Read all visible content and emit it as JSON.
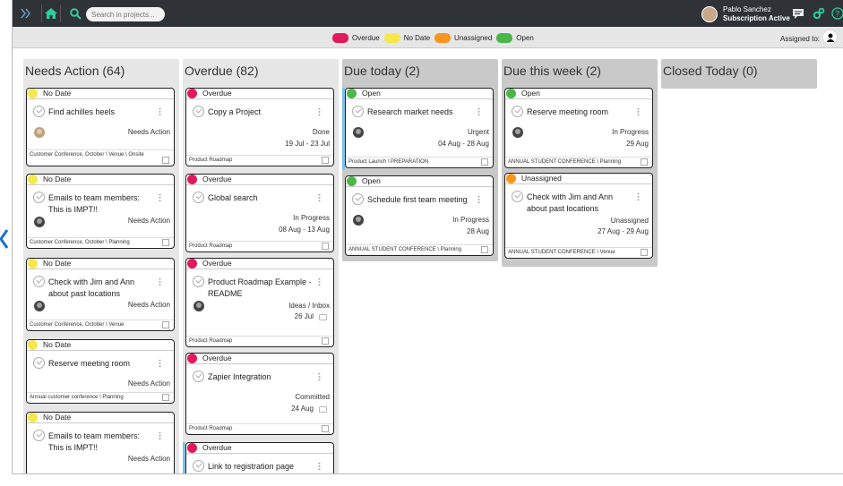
{
  "topbar": {
    "search_placeholder": "Search in projects...",
    "user_name": "Pablo Sanchez",
    "user_status": "Subscription Active",
    "icons": [
      "double-chevron-right-icon",
      "home-icon",
      "search-icon",
      "chat-icon",
      "settings-icon",
      "help-icon"
    ]
  },
  "legend": [
    {
      "label": "Overdue",
      "color": "#e2195a"
    },
    {
      "label": "No Date",
      "color": "#f5e84d"
    },
    {
      "label": "Unassigned",
      "color": "#f7961e"
    },
    {
      "label": "Open",
      "color": "#4cb64b"
    }
  ],
  "assigned_to_label": "Assigned to:",
  "columns": [
    {
      "title": "Needs Action (64)",
      "cards": [
        {
          "status": "No Date",
          "color": "#f5e84d",
          "title": "Find achilles heels",
          "state": "Needs Action",
          "dates": "",
          "project": "Customer Conference, October \\ Venue \\ Onsite"
        },
        {
          "status": "No Date",
          "color": "#f5e84d",
          "title": "Emails to team members: This is IMPT!!",
          "state": "Needs Action",
          "dates": "",
          "project": "Customer Conference, October \\ Planning"
        },
        {
          "status": "No Date",
          "color": "#f5e84d",
          "title": "Check with Jim and Ann about past locations",
          "state": "Needs Action",
          "dates": "",
          "project": "Customer Conference, October \\ Venue"
        },
        {
          "status": "No Date",
          "color": "#f5e84d",
          "title": "Reserve meeting room",
          "state": "Needs Action",
          "dates": "",
          "project": "Annual customer conference \\ Planning"
        },
        {
          "status": "No Date",
          "color": "#f5e84d",
          "title": "Emails to team members: This is IMPT!!",
          "state": "Needs Action",
          "dates": "",
          "project": ""
        }
      ]
    },
    {
      "title": "Overdue (82)",
      "cards": [
        {
          "status": "Overdue",
          "color": "#e2195a",
          "title": "Copy a Project",
          "state": "Done",
          "dates": "19 Jul - 23 Jul",
          "project": "Product Roadmap"
        },
        {
          "status": "Overdue",
          "color": "#e2195a",
          "title": "Global search",
          "state": "In Progress",
          "dates": "08 Aug - 13 Aug",
          "project": "Product Roadmap"
        },
        {
          "status": "Overdue",
          "color": "#e2195a",
          "title": "Product Roadmap Example - README",
          "state": "Ideas / Inbox",
          "dates": "26 Jul",
          "project": "Product Roadmap"
        },
        {
          "status": "Overdue",
          "color": "#e2195a",
          "title": "Zapier Integration",
          "state": "Committed",
          "dates": "24 Aug",
          "project": "Product Roadmap"
        },
        {
          "status": "Overdue",
          "color": "#e2195a",
          "title": "Link to registration page",
          "state": "",
          "dates": "",
          "project": ""
        }
      ]
    },
    {
      "title": "Due today (2)",
      "cards": [
        {
          "status": "Open",
          "color": "#4cb64b",
          "title": "Research market needs",
          "state": "Urgent",
          "dates": "04 Aug - 28 Aug",
          "project": "Product Launch \\ PREPARATION"
        },
        {
          "status": "Open",
          "color": "#4cb64b",
          "title": "Schedule first team meeting",
          "state": "In Progress",
          "dates": "28 Aug",
          "project": "ANNUAL STUDENT CONFERENCE \\ Planning"
        }
      ]
    },
    {
      "title": "Due this week (2)",
      "cards": [
        {
          "status": "Open",
          "color": "#4cb64b",
          "title": "Reserve meeting room",
          "state": "In Progress",
          "dates": "29 Aug",
          "project": "ANNUAL STUDENT CONFERENCE \\ Planning"
        },
        {
          "status": "Unassigned",
          "color": "#f7961e",
          "title": "Check with Jim and Ann about past locations",
          "state": "Unassigned",
          "dates": "27 Aug - 29 Aug",
          "project": "ANNUAL STUDENT CONFERENCE \\ Venue"
        }
      ]
    },
    {
      "title": "Closed Today (0)",
      "cards": []
    }
  ]
}
